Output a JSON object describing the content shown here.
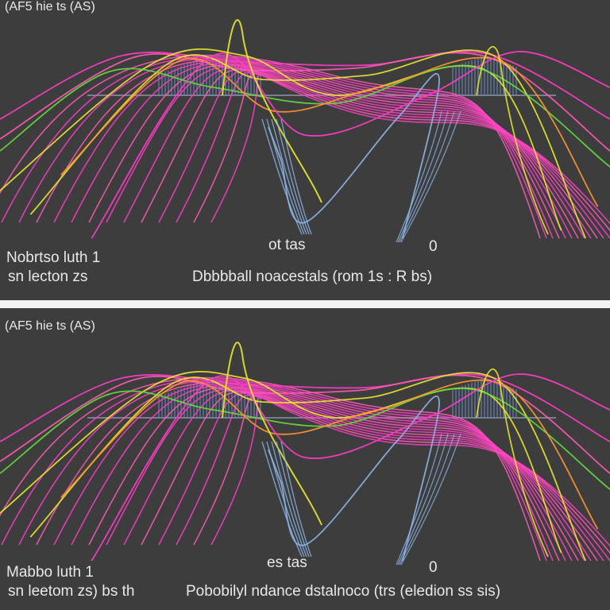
{
  "chart_data": [
    {
      "type": "line",
      "title": "(AF5 hie ts (AS)",
      "texts": {
        "label_center": "ot tas",
        "label_right": "0",
        "label_left_1": "Nobrtso luth 1",
        "label_left_2": "sn lecton zs",
        "xlabel": "Dbbbball noacestals (rom 1s : R bs)"
      },
      "colors": {
        "magenta": "#ff3cc8",
        "pink": "#ff5ab4",
        "yellow": "#e6e632",
        "orange": "#ff9632",
        "green": "#64dc3c",
        "blue": "#8cb4e6",
        "tower": "#6482b4"
      },
      "series": [
        {
          "color": "magenta",
          "points": [
            [
              0,
              150
            ],
            [
              20,
              70
            ],
            [
              40,
              78
            ],
            [
              60,
              82
            ],
            [
              80,
              68
            ],
            [
              100,
              150
            ]
          ]
        },
        {
          "color": "pink",
          "points": [
            [
              0,
              175
            ],
            [
              22,
              72
            ],
            [
              40,
              88
            ],
            [
              58,
              86
            ],
            [
              80,
              72
            ],
            [
              100,
              190
            ]
          ]
        },
        {
          "color": "yellow",
          "points": [
            [
              0,
              240
            ],
            [
              25,
              80
            ],
            [
              40,
              70
            ],
            [
              55,
              120
            ],
            [
              80,
              90
            ],
            [
              92,
              290
            ]
          ]
        },
        {
          "color": "yellow",
          "points": [
            [
              5,
              270
            ],
            [
              28,
              78
            ],
            [
              43,
              100
            ],
            [
              60,
              95
            ],
            [
              82,
              75
            ],
            [
              96,
              300
            ]
          ]
        },
        {
          "color": "green",
          "points": [
            [
              0,
              190
            ],
            [
              18,
              90
            ],
            [
              35,
              110
            ],
            [
              55,
              130
            ],
            [
              78,
              85
            ],
            [
              100,
              210
            ]
          ]
        },
        {
          "color": "orange",
          "points": [
            [
              10,
              220
            ],
            [
              30,
              75
            ],
            [
              45,
              140
            ],
            [
              62,
              110
            ],
            [
              83,
              80
            ],
            [
              98,
              260
            ]
          ]
        },
        {
          "color": "blue",
          "points": [
            [
              44,
              160
            ],
            [
              46,
              200
            ],
            [
              50,
              280
            ],
            [
              65,
              150
            ],
            [
              72,
              100
            ],
            [
              66,
              300
            ]
          ]
        },
        {
          "color": "magenta",
          "points": [
            [
              15,
              300
            ],
            [
              35,
              70
            ],
            [
              50,
              170
            ],
            [
              70,
              120
            ],
            [
              85,
              65
            ],
            [
              100,
              110
            ]
          ]
        }
      ]
    },
    {
      "type": "line",
      "title": "(AF5 hie ts (AS)",
      "texts": {
        "label_center": "es tas",
        "label_right": "0",
        "label_left_1": "Mabbo luth 1",
        "label_left_2": "sn leetom zs) bs th",
        "xlabel": "Pobobilyl ndance dstalnoco (trs (eledion ss sis)"
      },
      "colors": {
        "magenta": "#ff3cc8",
        "pink": "#ff5ab4",
        "yellow": "#e6e632",
        "orange": "#ff9632",
        "green": "#64dc3c",
        "blue": "#8cb4e6",
        "tower": "#6482b4"
      },
      "series": [
        {
          "color": "magenta",
          "points": [
            [
              0,
              150
            ],
            [
              20,
              70
            ],
            [
              40,
              78
            ],
            [
              60,
              82
            ],
            [
              80,
              68
            ],
            [
              100,
              150
            ]
          ]
        },
        {
          "color": "pink",
          "points": [
            [
              0,
              175
            ],
            [
              22,
              72
            ],
            [
              40,
              88
            ],
            [
              58,
              86
            ],
            [
              80,
              72
            ],
            [
              100,
              190
            ]
          ]
        },
        {
          "color": "yellow",
          "points": [
            [
              0,
              240
            ],
            [
              25,
              80
            ],
            [
              40,
              70
            ],
            [
              55,
              120
            ],
            [
              80,
              90
            ],
            [
              92,
              290
            ]
          ]
        },
        {
          "color": "yellow",
          "points": [
            [
              5,
              270
            ],
            [
              28,
              78
            ],
            [
              43,
              100
            ],
            [
              60,
              95
            ],
            [
              82,
              75
            ],
            [
              96,
              300
            ]
          ]
        },
        {
          "color": "green",
          "points": [
            [
              0,
              190
            ],
            [
              18,
              90
            ],
            [
              35,
              110
            ],
            [
              55,
              130
            ],
            [
              78,
              85
            ],
            [
              100,
              210
            ]
          ]
        },
        {
          "color": "orange",
          "points": [
            [
              10,
              220
            ],
            [
              30,
              75
            ],
            [
              45,
              140
            ],
            [
              62,
              110
            ],
            [
              83,
              80
            ],
            [
              98,
              260
            ]
          ]
        },
        {
          "color": "blue",
          "points": [
            [
              44,
              160
            ],
            [
              46,
              200
            ],
            [
              50,
              280
            ],
            [
              65,
              150
            ],
            [
              72,
              100
            ],
            [
              66,
              300
            ]
          ]
        },
        {
          "color": "magenta",
          "points": [
            [
              15,
              300
            ],
            [
              35,
              70
            ],
            [
              50,
              170
            ],
            [
              70,
              120
            ],
            [
              85,
              65
            ],
            [
              100,
              110
            ]
          ]
        }
      ]
    }
  ]
}
